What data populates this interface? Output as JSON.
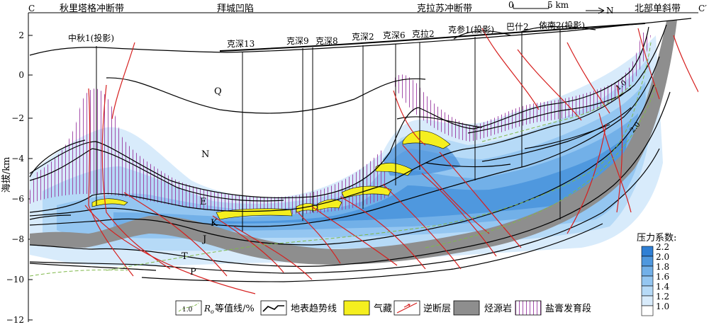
{
  "header": {
    "left_letter": "C",
    "right_letter": "C′",
    "regions": [
      "秋里塔格冲断带",
      "拜城凹陷",
      "克拉苏冲断带",
      "北部单斜带"
    ],
    "scale_zero": "0",
    "scale_label": "5 km",
    "north_label": "N"
  },
  "y_axis": {
    "label": "海拔/km",
    "ticks": [
      "2",
      "0",
      "−2",
      "−4",
      "−6",
      "−8",
      "−10",
      "−12"
    ]
  },
  "wells": [
    "中秋1(投影)",
    "克深13",
    "克深9",
    "克深8",
    "克深2",
    "克深6",
    "克拉2",
    "克参1(投影)",
    "巴什2",
    "依南2(投影)"
  ],
  "layers": [
    "Q",
    "N",
    "E",
    "K",
    "J",
    "T",
    "P"
  ],
  "contour_labels": [
    "1.0",
    "2.0"
  ],
  "pressure_legend": {
    "title": "压力系数:",
    "values": [
      "2.2",
      "2.0",
      "1.8",
      "1.6",
      "1.4",
      "1.2",
      "1.0"
    ],
    "colors": [
      "#2f7fd4",
      "#4f98de",
      "#72b0e8",
      "#94c6f1",
      "#b6daf7",
      "#d8ebfb",
      "#ffffff"
    ]
  },
  "legend": [
    {
      "key": "ro",
      "label": "等值线/%",
      "prefix": "R",
      "sub": "o",
      "sample": "1.0"
    },
    {
      "key": "surface",
      "label": "地表趋势线"
    },
    {
      "key": "gas",
      "label": "气藏"
    },
    {
      "key": "fault",
      "label": "逆断层"
    },
    {
      "key": "source",
      "label": "烃源岩"
    },
    {
      "key": "salt",
      "label": "盐膏发育段"
    }
  ],
  "colors": {
    "gas": "#f5ef1f",
    "source": "#8e8e8e",
    "fault": "#d6201f",
    "salt": "#9a3aa0",
    "contour": "#7fb84a"
  }
}
